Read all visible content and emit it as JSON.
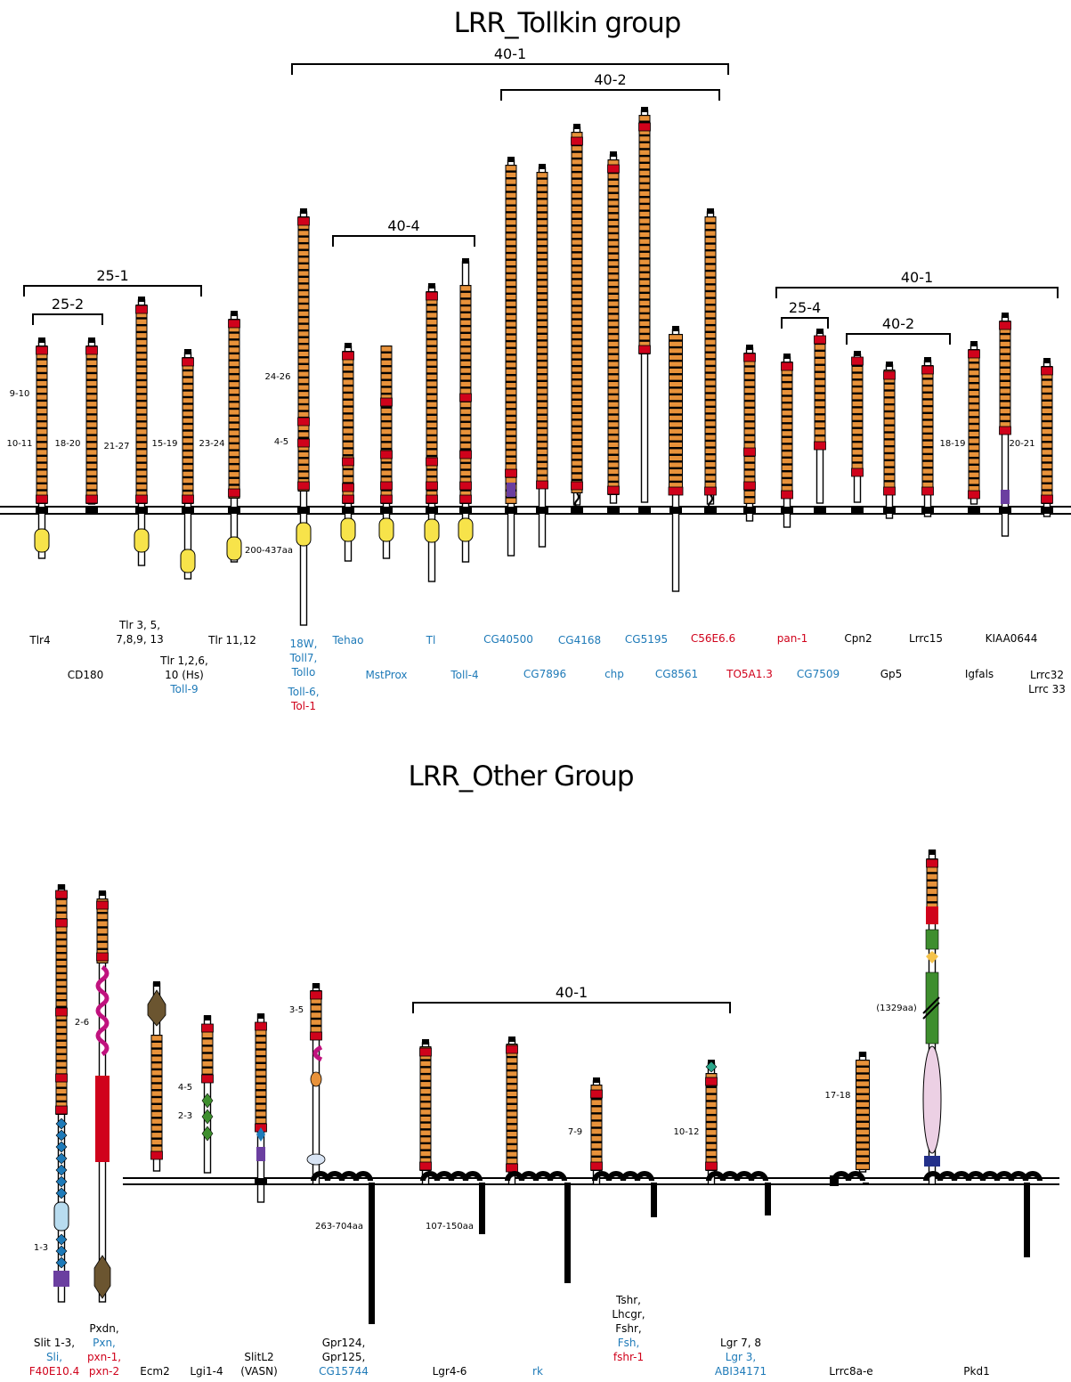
{
  "colors": {
    "orange": "#e8923a",
    "red": "#d0021b",
    "yellow": "#f7e34a",
    "blue": "#1e7ab8",
    "purple": "#6b3fa0",
    "magenta": "#c0127e",
    "green": "#3e8e2e",
    "black": "#000000",
    "brown": "#6b5530",
    "lightblue": "#b8dcef",
    "pink": "#ecd0e4",
    "navy": "#23308a",
    "teal": "#2aa68a"
  },
  "tollkin": {
    "title": "LRR_Tollkin group",
    "brackets": [
      {
        "id": "b401",
        "label": "40-1"
      },
      {
        "id": "b402",
        "label": "40-2"
      },
      {
        "id": "b404",
        "label": "40-4"
      },
      {
        "id": "b251",
        "label": "25-1"
      },
      {
        "id": "b252",
        "label": "25-2"
      },
      {
        "id": "b401r",
        "label": "40-1"
      },
      {
        "id": "b254",
        "label": "25-4"
      },
      {
        "id": "b402r",
        "label": "40-2"
      }
    ],
    "ranges": {
      "r1": "9-10",
      "r2": "10-11",
      "r3": "18-20",
      "r4": "21-27",
      "r5": "15-19",
      "r6": "23-24",
      "r7": "24-26",
      "r8": "4-5",
      "r9": "200-437aa",
      "r10": "18-19",
      "r11": "20-21"
    },
    "labels": [
      {
        "id": "tlr4",
        "lines": [
          {
            "t": "Tlr4",
            "c": "k"
          }
        ]
      },
      {
        "id": "cd180",
        "lines": [
          {
            "t": "CD180",
            "c": "k"
          }
        ]
      },
      {
        "id": "tlr35",
        "lines": [
          {
            "t": "Tlr 3, 5,",
            "c": "k"
          },
          {
            "t": "7,8,9, 13",
            "c": "k"
          }
        ]
      },
      {
        "id": "tlr126",
        "lines": [
          {
            "t": "Tlr 1,2,6,",
            "c": "k"
          },
          {
            "t": "10 (Hs)",
            "c": "k"
          },
          {
            "t": "Toll-9",
            "c": "b"
          }
        ]
      },
      {
        "id": "tlr1112",
        "lines": [
          {
            "t": "Tlr 11,12",
            "c": "k"
          }
        ]
      },
      {
        "id": "t18w",
        "lines": [
          {
            "t": "18W,",
            "c": "b"
          },
          {
            "t": "Toll7,",
            "c": "b"
          },
          {
            "t": "Tollo",
            "c": "b"
          }
        ]
      },
      {
        "id": "toll6",
        "lines": [
          {
            "t": "Toll-6,",
            "c": "b"
          },
          {
            "t": "Tol-1",
            "c": "r"
          }
        ]
      },
      {
        "id": "tehao",
        "lines": [
          {
            "t": "Tehao",
            "c": "b"
          }
        ]
      },
      {
        "id": "mstprox",
        "lines": [
          {
            "t": "MstProx",
            "c": "b"
          }
        ]
      },
      {
        "id": "tl",
        "lines": [
          {
            "t": "Tl",
            "c": "b"
          }
        ]
      },
      {
        "id": "toll4",
        "lines": [
          {
            "t": "Toll-4",
            "c": "b"
          }
        ]
      },
      {
        "id": "cg40500",
        "lines": [
          {
            "t": "CG40500",
            "c": "b"
          }
        ]
      },
      {
        "id": "cg7896",
        "lines": [
          {
            "t": "CG7896",
            "c": "b"
          }
        ]
      },
      {
        "id": "cg4168",
        "lines": [
          {
            "t": "CG4168",
            "c": "b"
          }
        ]
      },
      {
        "id": "chp",
        "lines": [
          {
            "t": "chp",
            "c": "b"
          }
        ]
      },
      {
        "id": "cg5195",
        "lines": [
          {
            "t": "CG5195",
            "c": "b"
          }
        ]
      },
      {
        "id": "cg8561",
        "lines": [
          {
            "t": "CG8561",
            "c": "b"
          }
        ]
      },
      {
        "id": "c56e6",
        "lines": [
          {
            "t": "C56E6.6",
            "c": "r"
          }
        ]
      },
      {
        "id": "to5a1",
        "lines": [
          {
            "t": "TO5A1.3",
            "c": "r"
          }
        ]
      },
      {
        "id": "pan1",
        "lines": [
          {
            "t": "pan-1",
            "c": "r"
          }
        ]
      },
      {
        "id": "cg7509",
        "lines": [
          {
            "t": "CG7509",
            "c": "b"
          }
        ]
      },
      {
        "id": "cpn2",
        "lines": [
          {
            "t": "Cpn2",
            "c": "k"
          }
        ]
      },
      {
        "id": "gp5",
        "lines": [
          {
            "t": "Gp5",
            "c": "k"
          }
        ]
      },
      {
        "id": "lrrc15",
        "lines": [
          {
            "t": "Lrrc15",
            "c": "k"
          }
        ]
      },
      {
        "id": "igfals",
        "lines": [
          {
            "t": "Igfals",
            "c": "k"
          }
        ]
      },
      {
        "id": "kiaa",
        "lines": [
          {
            "t": "KIAA0644",
            "c": "k"
          }
        ]
      },
      {
        "id": "lrrc32",
        "lines": [
          {
            "t": "Lrrc32",
            "c": "k"
          },
          {
            "t": "Lrrc 33",
            "c": "k"
          }
        ]
      }
    ]
  },
  "other": {
    "title": "LRR_Other Group",
    "brackets": [
      {
        "id": "b401o",
        "label": "40-1"
      }
    ],
    "ranges": {
      "o1": "2-6",
      "o2": "1-3",
      "o3": "4-5",
      "o4": "2-3",
      "o5": "3-5",
      "o6": "263-704aa",
      "o7": "107-150aa",
      "o8": "7-9",
      "o9": "10-12",
      "o10": "17-18",
      "o11": "(1329aa)"
    },
    "labels": [
      {
        "id": "slit",
        "lines": [
          {
            "t": "Slit 1-3,",
            "c": "k"
          },
          {
            "t": "Sli,",
            "c": "b"
          },
          {
            "t": "F40E10.4",
            "c": "r"
          }
        ]
      },
      {
        "id": "pxdn",
        "lines": [
          {
            "t": "Pxdn,",
            "c": "k"
          },
          {
            "t": "Pxn,",
            "c": "b"
          },
          {
            "t": "pxn-1,",
            "c": "r"
          },
          {
            "t": "pxn-2",
            "c": "r"
          }
        ]
      },
      {
        "id": "ecm2",
        "lines": [
          {
            "t": "Ecm2",
            "c": "k"
          }
        ]
      },
      {
        "id": "lgi",
        "lines": [
          {
            "t": "Lgi1-4",
            "c": "k"
          }
        ]
      },
      {
        "id": "slitl2",
        "lines": [
          {
            "t": "SlitL2",
            "c": "k"
          },
          {
            "t": "(VASN)",
            "c": "k"
          }
        ]
      },
      {
        "id": "gpr",
        "lines": [
          {
            "t": "Gpr124,",
            "c": "k"
          },
          {
            "t": "Gpr125,",
            "c": "k"
          },
          {
            "t": "CG15744",
            "c": "b"
          }
        ]
      },
      {
        "id": "lgr46",
        "lines": [
          {
            "t": "Lgr4-6",
            "c": "k"
          }
        ]
      },
      {
        "id": "rk",
        "lines": [
          {
            "t": "rk",
            "c": "b"
          }
        ]
      },
      {
        "id": "tshr",
        "lines": [
          {
            "t": "Tshr,",
            "c": "k"
          },
          {
            "t": "Lhcgr,",
            "c": "k"
          },
          {
            "t": "Fshr,",
            "c": "k"
          },
          {
            "t": "Fsh,",
            "c": "b"
          },
          {
            "t": "fshr-1",
            "c": "r"
          }
        ]
      },
      {
        "id": "lgr78",
        "lines": [
          {
            "t": "Lgr 7, 8",
            "c": "k"
          },
          {
            "t": "Lgr 3,",
            "c": "b"
          },
          {
            "t": "ABI34171",
            "c": "b"
          }
        ]
      },
      {
        "id": "lrrc8",
        "lines": [
          {
            "t": "Lrrc8a-e",
            "c": "k"
          }
        ]
      },
      {
        "id": "pkd1",
        "lines": [
          {
            "t": "Pkd1",
            "c": "k"
          }
        ]
      }
    ]
  }
}
